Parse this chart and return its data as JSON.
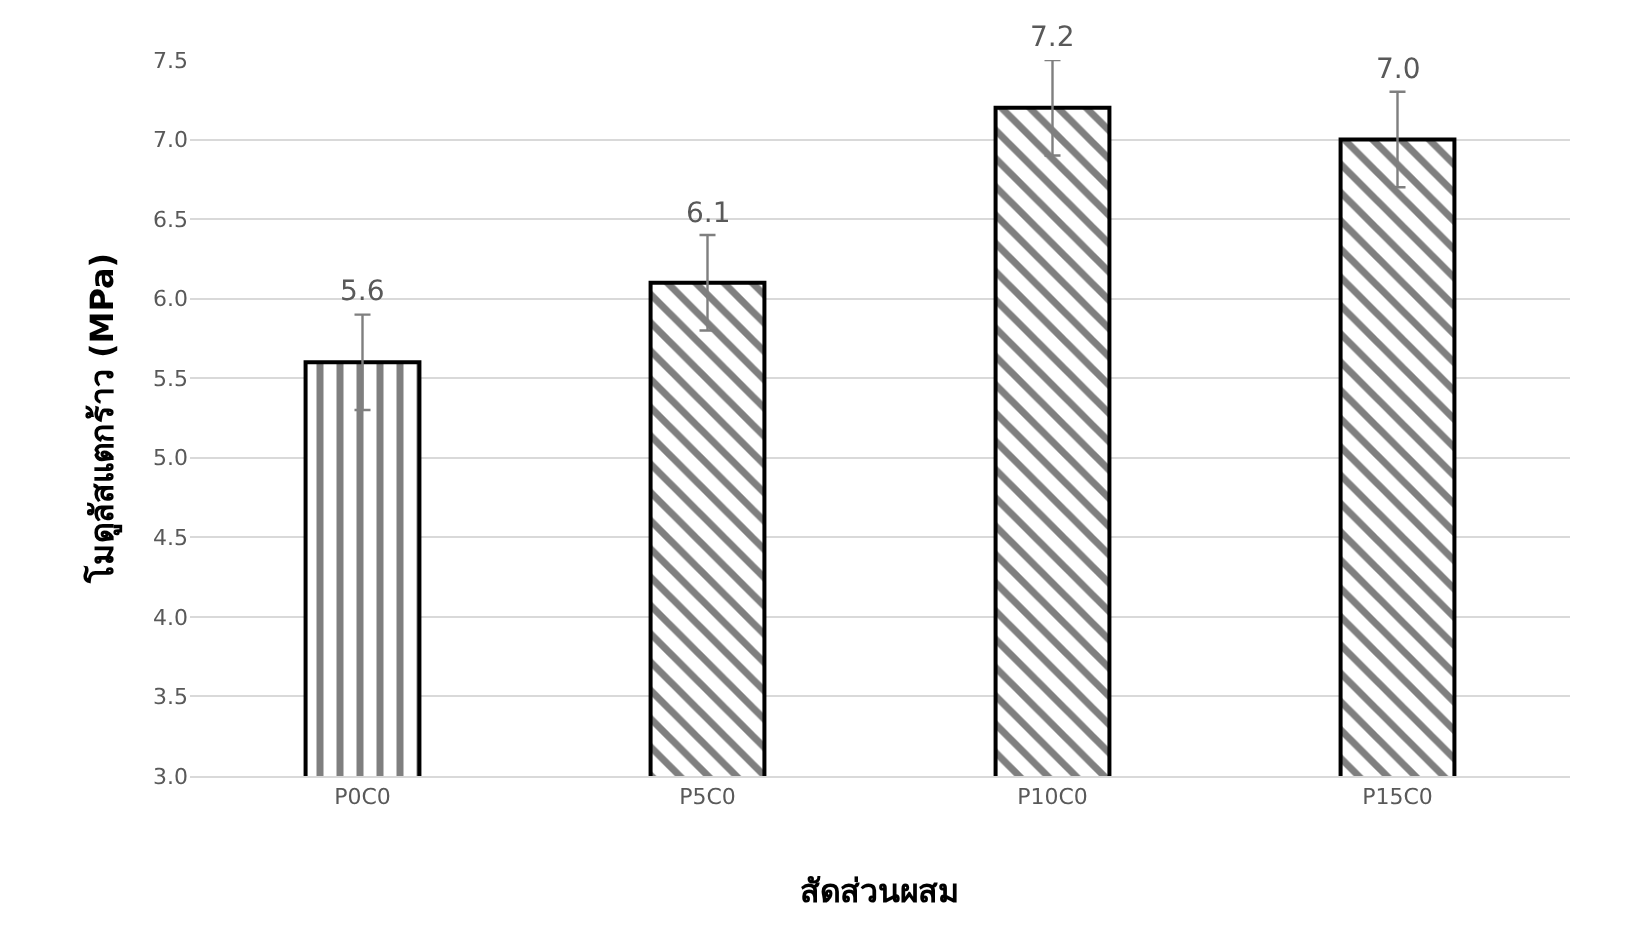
{
  "chart_data": {
    "type": "bar",
    "xlabel": "สัดส่วนผสม",
    "ylabel": "โมดูลัสแตกร้าว (MPa)",
    "categories": [
      "P0C0",
      "P5C0",
      "P10C0",
      "P15C0"
    ],
    "values": [
      5.6,
      6.1,
      7.2,
      7.0
    ],
    "errors": [
      0.3,
      0.3,
      0.3,
      0.3
    ],
    "color": "#000000",
    "value_labels": [
      "5.6",
      "6.1",
      "7.2",
      "7.0"
    ],
    "ylim": [
      3.0,
      7.5
    ],
    "yticks": [
      {
        "value": 3,
        "label": "3.0"
      },
      {
        "value": 3.5,
        "label": "3.5"
      },
      {
        "value": 4,
        "label": "4.0"
      },
      {
        "value": 4.5,
        "label": "4.5"
      },
      {
        "value": 5,
        "label": "5.0"
      },
      {
        "value": 5.5,
        "label": "5.5"
      },
      {
        "value": 6,
        "label": "6.0"
      },
      {
        "value": 6.5,
        "label": "6.5"
      },
      {
        "value": 7,
        "label": "7.0"
      },
      {
        "value": 7.5,
        "label": "7.5"
      }
    ],
    "grid": "y"
  }
}
